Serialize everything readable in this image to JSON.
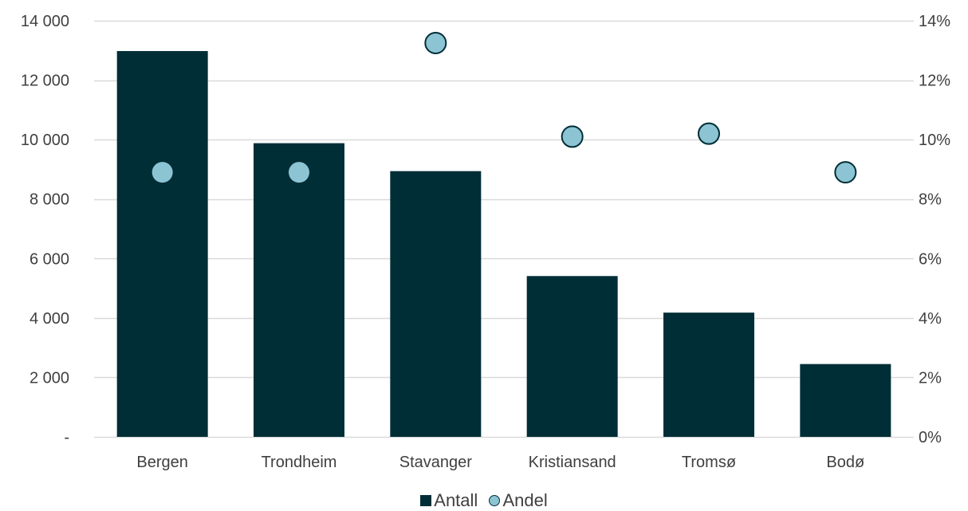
{
  "chart_data": {
    "type": "bar",
    "categories": [
      "Bergen",
      "Trondheim",
      "Stavanger",
      "Kristiansand",
      "Tromsø",
      "Bodø"
    ],
    "series": [
      {
        "name": "Antall",
        "kind": "bar",
        "axis": "left",
        "values": [
          12980,
          9880,
          8940,
          5410,
          4180,
          2450
        ]
      },
      {
        "name": "Andel",
        "kind": "scatter",
        "axis": "right",
        "values": [
          0.089,
          0.089,
          0.1325,
          0.101,
          0.102,
          0.089
        ]
      }
    ],
    "y_left": {
      "min": 0,
      "max": 14000,
      "ticks": [
        0,
        2000,
        4000,
        6000,
        8000,
        10000,
        12000,
        14000
      ],
      "tick_labels": [
        "-",
        "2 000",
        "4 000",
        "6 000",
        "8 000",
        "10 000",
        "12 000",
        "14 000"
      ]
    },
    "y_right": {
      "min": 0,
      "max": 0.14,
      "ticks": [
        0,
        0.02,
        0.04,
        0.06,
        0.08,
        0.1,
        0.12,
        0.14
      ],
      "tick_labels": [
        "0%",
        "2%",
        "4%",
        "6%",
        "8%",
        "10%",
        "12%",
        "14%"
      ]
    },
    "grid": true,
    "legend": "bottom",
    "colors": {
      "bar": "#002e36",
      "dot": "#8cc4d4",
      "dot_outline": "#002e36",
      "grid": "#d9d9d9"
    }
  }
}
